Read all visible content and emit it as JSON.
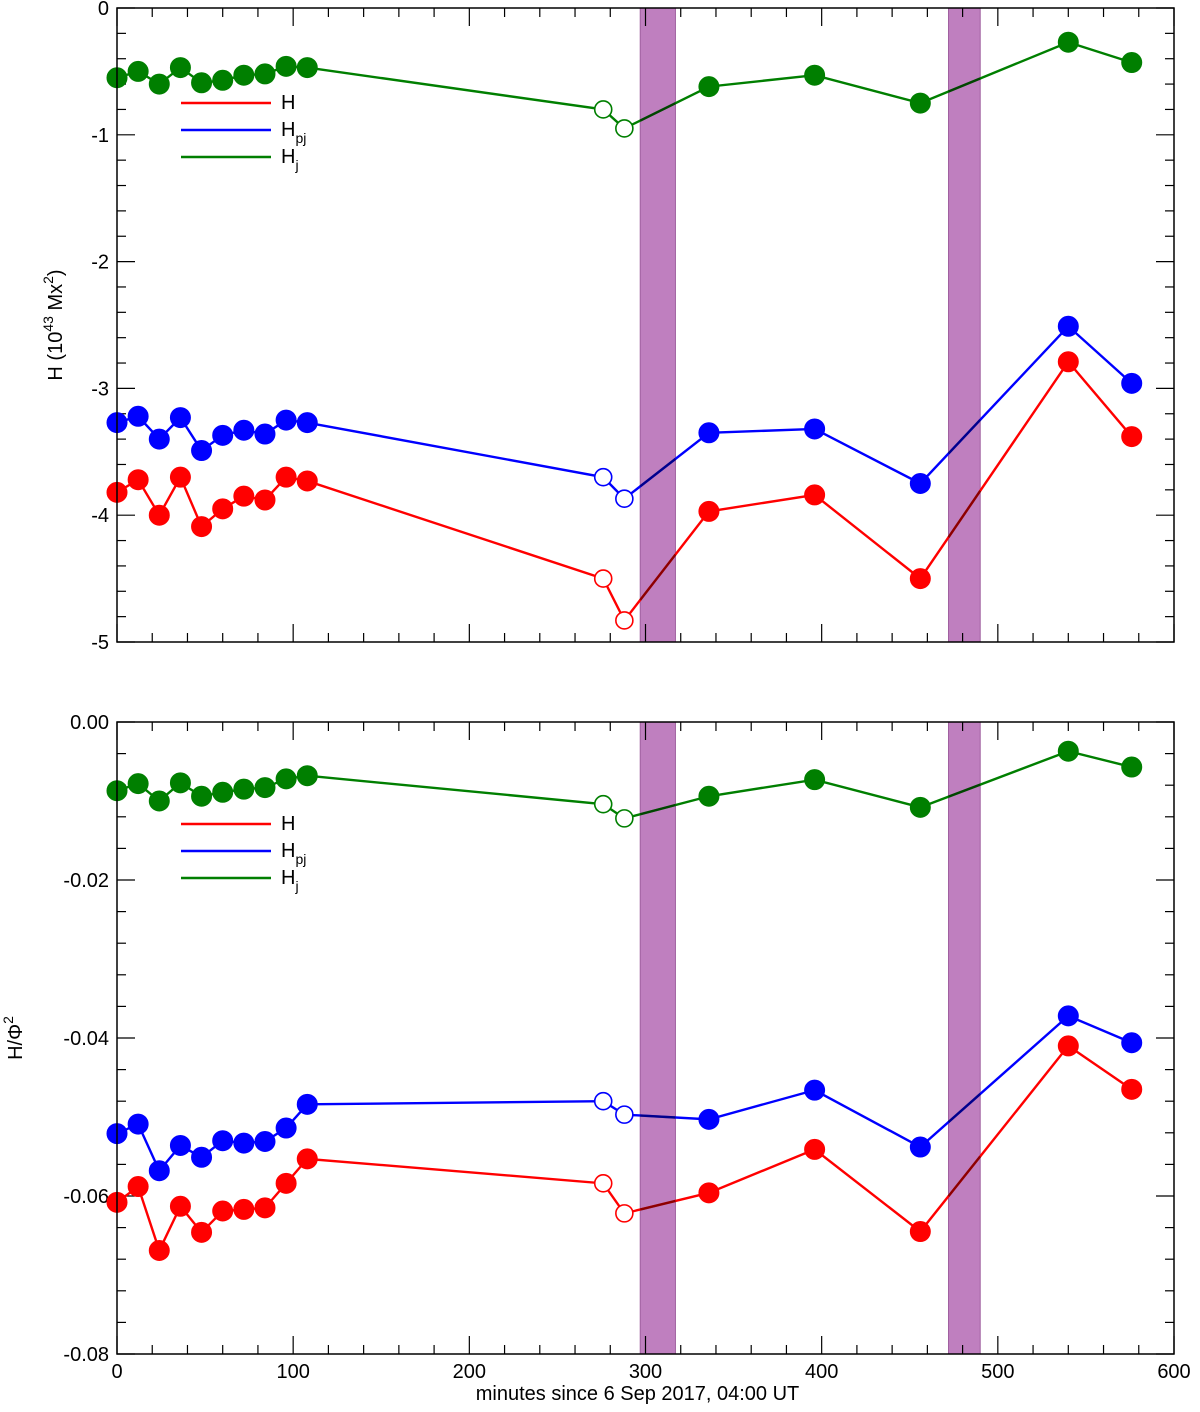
{
  "chart_data": [
    {
      "type": "line",
      "panel": "top",
      "ylabel": "H (10",
      "ylabel_sup1": "43",
      "ylabel_mid": " Mx",
      "ylabel_sup2": "2",
      "ylabel_end": ")",
      "xlabel": "",
      "xlim": [
        0,
        600
      ],
      "ylim": [
        -5,
        0
      ],
      "yticks": [
        0,
        -1,
        -2,
        -3,
        -4,
        -5
      ],
      "ytick_labels": [
        "0",
        "-1",
        "-2",
        "-3",
        "-4",
        "-5"
      ],
      "xticks": [
        0,
        100,
        200,
        300,
        400,
        500,
        600
      ],
      "xtick_labels": [],
      "shaded_intervals": [
        [
          297,
          317
        ],
        [
          472,
          490
        ]
      ],
      "shade_color": "#bf7fbf",
      "legend": {
        "placement": "top-left",
        "entries": [
          {
            "label": "H",
            "sub": "",
            "color": "#ff0000"
          },
          {
            "label": "H",
            "sub": "pj",
            "color": "#0000ff"
          },
          {
            "label": "H",
            "sub": "j",
            "color": "#007f00"
          }
        ]
      },
      "series": [
        {
          "name": "H",
          "color": "#ff0000",
          "x": [
            0,
            12,
            24,
            36,
            48,
            60,
            72,
            84,
            96,
            108,
            276,
            288,
            336,
            396,
            456,
            540,
            576
          ],
          "values": [
            -3.82,
            -3.72,
            -4.0,
            -3.7,
            -4.09,
            -3.95,
            -3.85,
            -3.88,
            -3.7,
            -3.73,
            -4.5,
            -4.83,
            -3.97,
            -3.84,
            -4.5,
            -2.79,
            -3.38
          ],
          "open": [
            false,
            false,
            false,
            false,
            false,
            false,
            false,
            false,
            false,
            false,
            true,
            true,
            false,
            false,
            false,
            false,
            false
          ]
        },
        {
          "name": "Hpj",
          "color": "#0000ff",
          "x": [
            0,
            12,
            24,
            36,
            48,
            60,
            72,
            84,
            96,
            108,
            276,
            288,
            336,
            396,
            456,
            540,
            576
          ],
          "values": [
            -3.27,
            -3.22,
            -3.4,
            -3.23,
            -3.49,
            -3.37,
            -3.33,
            -3.36,
            -3.25,
            -3.27,
            -3.7,
            -3.87,
            -3.35,
            -3.32,
            -3.75,
            -2.51,
            -2.96
          ],
          "open": [
            false,
            false,
            false,
            false,
            false,
            false,
            false,
            false,
            false,
            false,
            true,
            true,
            false,
            false,
            false,
            false,
            false
          ]
        },
        {
          "name": "Hj",
          "color": "#007f00",
          "x": [
            0,
            12,
            24,
            36,
            48,
            60,
            72,
            84,
            96,
            108,
            276,
            288,
            336,
            396,
            456,
            540,
            576
          ],
          "values": [
            -0.55,
            -0.5,
            -0.6,
            -0.47,
            -0.59,
            -0.57,
            -0.53,
            -0.52,
            -0.46,
            -0.47,
            -0.8,
            -0.95,
            -0.62,
            -0.53,
            -0.75,
            -0.27,
            -0.43
          ],
          "open": [
            false,
            false,
            false,
            false,
            false,
            false,
            false,
            false,
            false,
            false,
            true,
            true,
            false,
            false,
            false,
            false,
            false
          ]
        }
      ]
    },
    {
      "type": "line",
      "panel": "bottom",
      "ylabel": "H/Φ",
      "ylabel_sup1": "2",
      "xlabel": "minutes since 6 Sep 2017, 04:00 UT",
      "xlim": [
        0,
        600
      ],
      "ylim": [
        -0.08,
        0.0
      ],
      "yticks": [
        0.0,
        -0.02,
        -0.04,
        -0.06,
        -0.08
      ],
      "ytick_labels": [
        "0.00",
        "-0.02",
        "-0.04",
        "-0.06",
        "-0.08"
      ],
      "xticks": [
        0,
        100,
        200,
        300,
        400,
        500,
        600
      ],
      "xtick_labels": [
        "0",
        "100",
        "200",
        "300",
        "400",
        "500",
        "600"
      ],
      "shaded_intervals": [
        [
          297,
          317
        ],
        [
          472,
          490
        ]
      ],
      "shade_color": "#bf7fbf",
      "legend": {
        "placement": "top-left",
        "entries": [
          {
            "label": "H",
            "sub": "",
            "color": "#ff0000"
          },
          {
            "label": "H",
            "sub": "pj",
            "color": "#0000ff"
          },
          {
            "label": "H",
            "sub": "j",
            "color": "#007f00"
          }
        ]
      },
      "series": [
        {
          "name": "H",
          "color": "#ff0000",
          "x": [
            0,
            12,
            24,
            36,
            48,
            60,
            72,
            84,
            96,
            108,
            276,
            288,
            336,
            396,
            456,
            540,
            576
          ],
          "values": [
            -0.0608,
            -0.0588,
            -0.0669,
            -0.0613,
            -0.0646,
            -0.0619,
            -0.0617,
            -0.0615,
            -0.0584,
            -0.0553,
            -0.0584,
            -0.0622,
            -0.0596,
            -0.0541,
            -0.0645,
            -0.041,
            -0.0465
          ],
          "open": [
            false,
            false,
            false,
            false,
            false,
            false,
            false,
            false,
            false,
            false,
            true,
            true,
            false,
            false,
            false,
            false,
            false
          ]
        },
        {
          "name": "Hpj",
          "color": "#0000ff",
          "x": [
            0,
            12,
            24,
            36,
            48,
            60,
            72,
            84,
            96,
            108,
            276,
            288,
            336,
            396,
            456,
            540,
            576
          ],
          "values": [
            -0.0521,
            -0.0509,
            -0.0568,
            -0.0536,
            -0.0551,
            -0.053,
            -0.0533,
            -0.0531,
            -0.0514,
            -0.0484,
            -0.048,
            -0.0497,
            -0.0503,
            -0.0466,
            -0.0538,
            -0.0372,
            -0.0406
          ],
          "open": [
            false,
            false,
            false,
            false,
            false,
            false,
            false,
            false,
            false,
            false,
            true,
            true,
            false,
            false,
            false,
            false,
            false
          ]
        },
        {
          "name": "Hj",
          "color": "#007f00",
          "x": [
            0,
            12,
            24,
            36,
            48,
            60,
            72,
            84,
            96,
            108,
            276,
            288,
            336,
            396,
            456,
            540,
            576
          ],
          "values": [
            -0.0087,
            -0.0078,
            -0.01,
            -0.0077,
            -0.0094,
            -0.0089,
            -0.0085,
            -0.0083,
            -0.0072,
            -0.0068,
            -0.0104,
            -0.0122,
            -0.0094,
            -0.0073,
            -0.0108,
            -0.0037,
            -0.0057
          ],
          "open": [
            false,
            false,
            false,
            false,
            false,
            false,
            false,
            false,
            false,
            false,
            true,
            true,
            false,
            false,
            false,
            false,
            false
          ]
        }
      ]
    }
  ]
}
